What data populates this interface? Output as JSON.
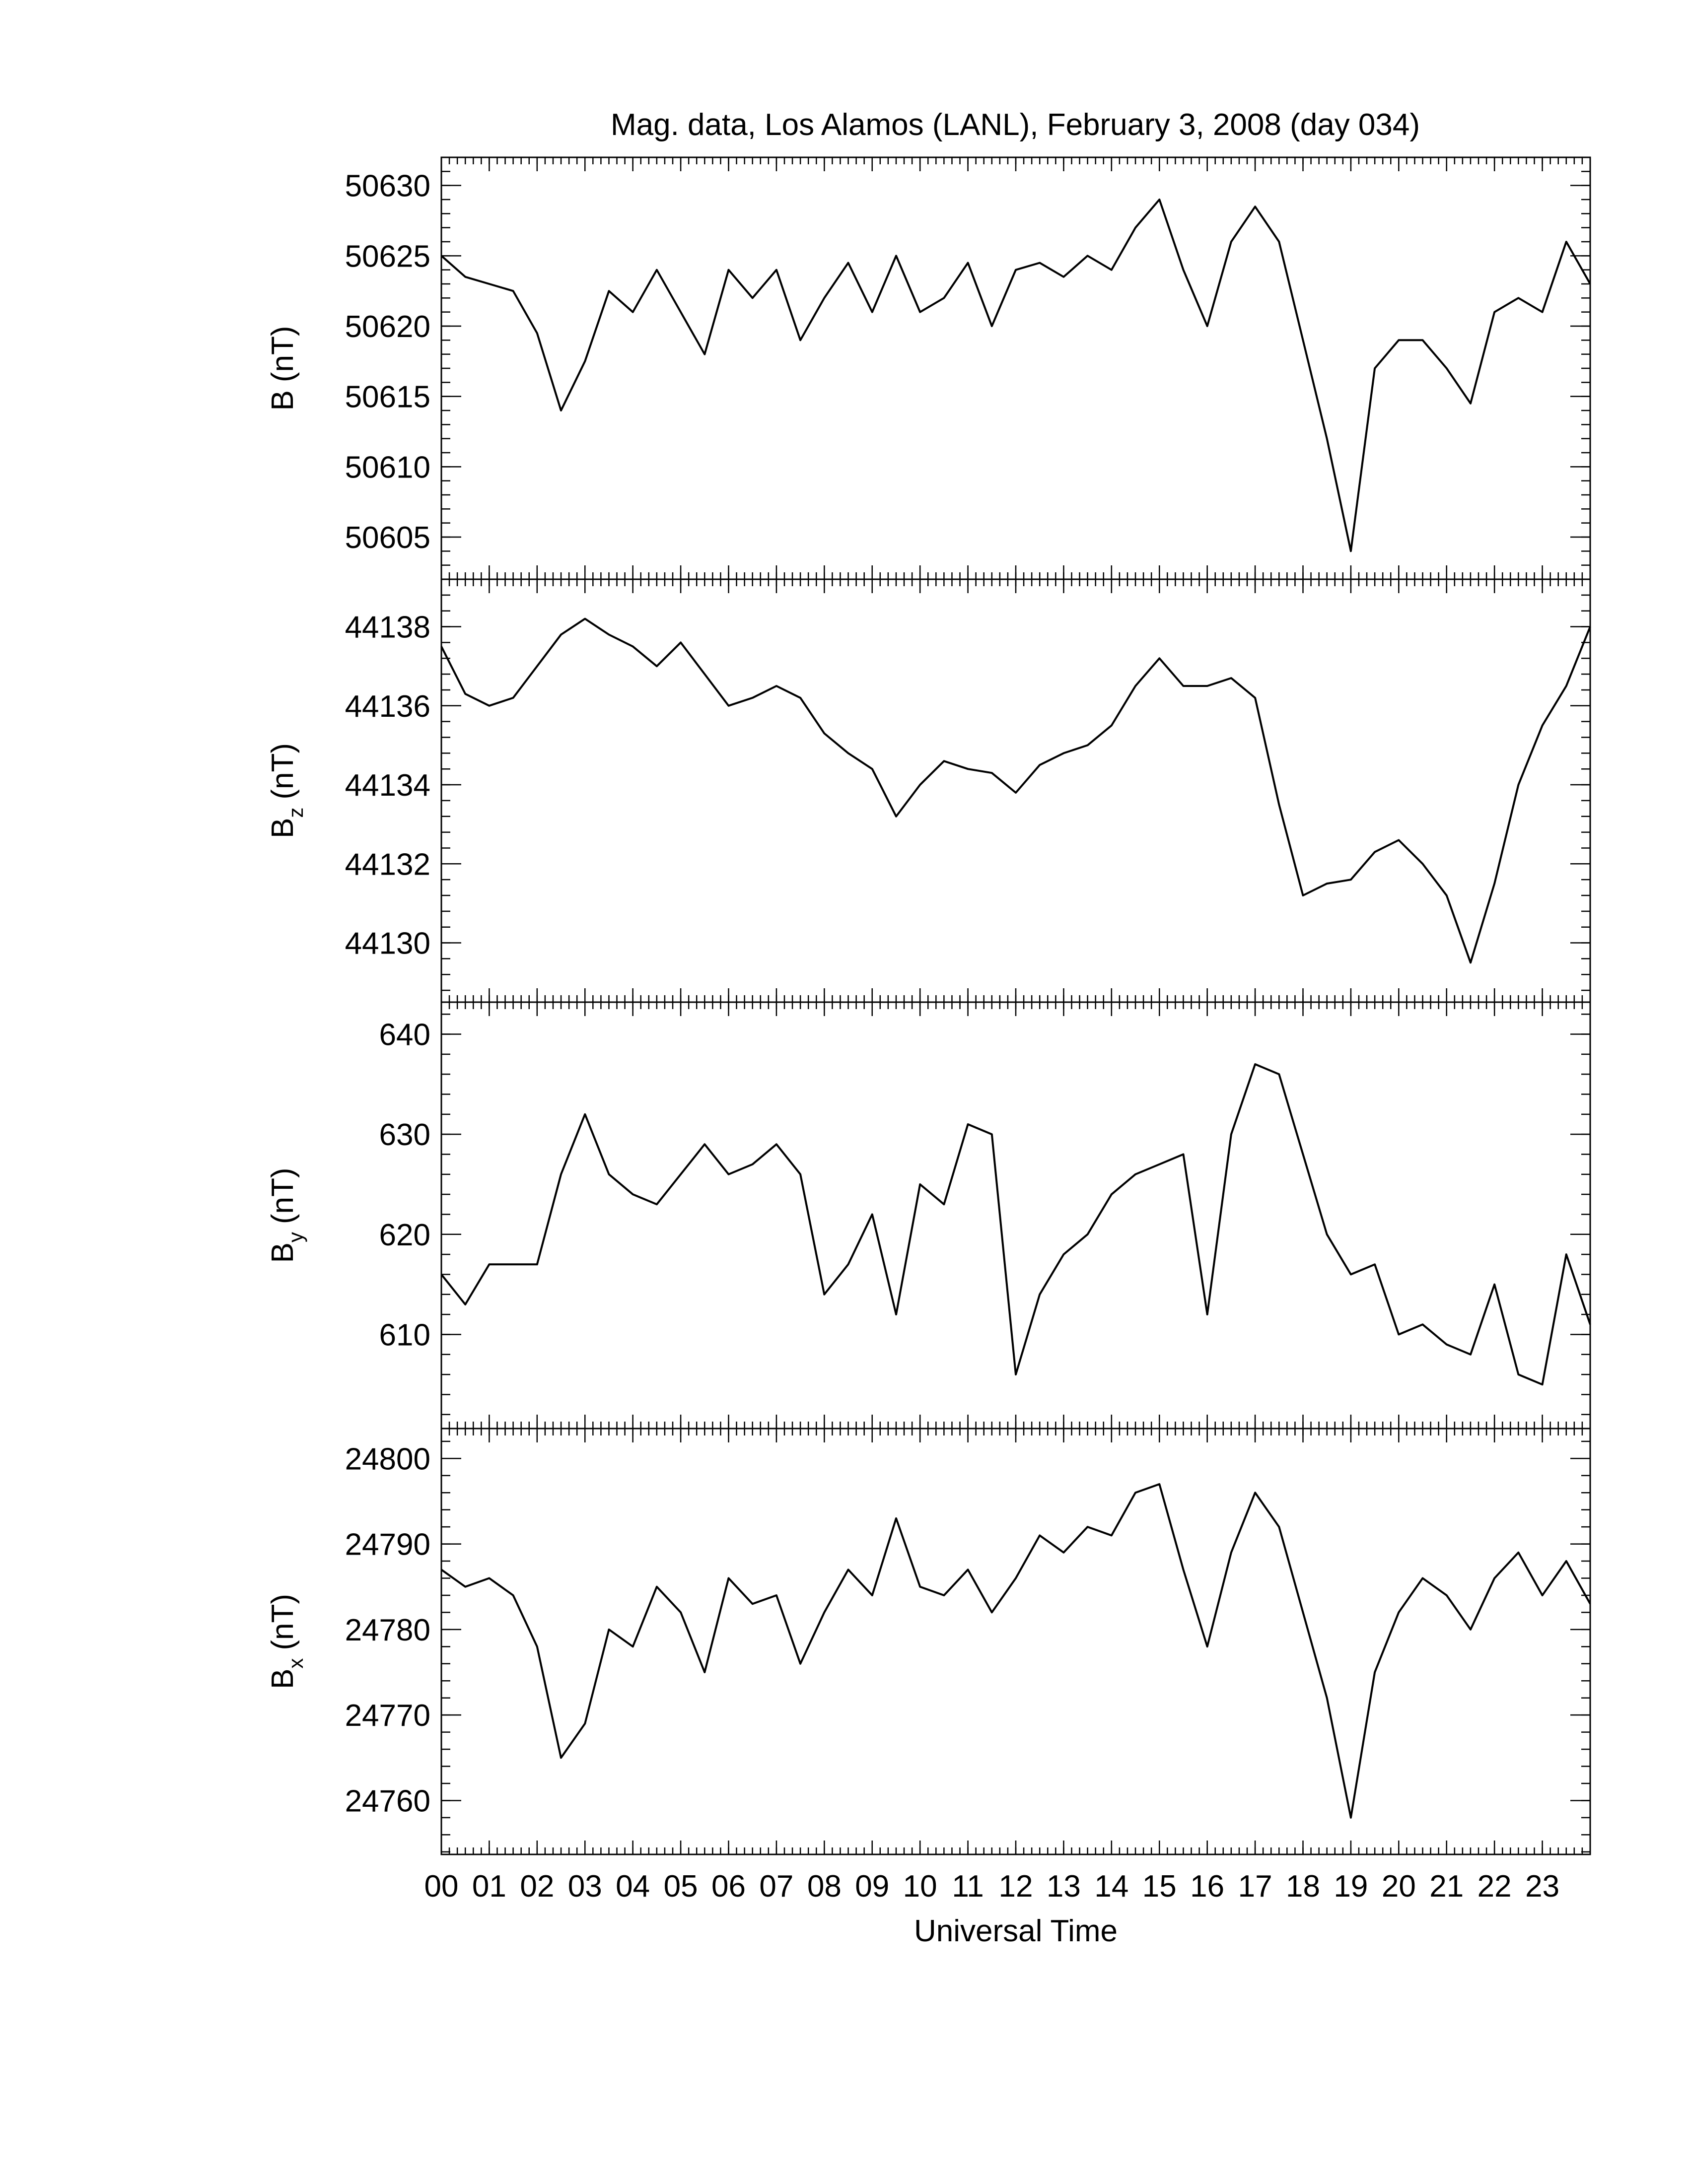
{
  "chart_data": [
    {
      "type": "line",
      "title": "Mag. data, Los Alamos (LANL), February 3, 2008 (day 034)",
      "ylabel": "B",
      "ylabel_unit": "(nT)",
      "color": "#000000",
      "xlim": [
        0,
        24
      ],
      "ylim": [
        50602,
        50632
      ],
      "yticks": [
        50605,
        50610,
        50615,
        50620,
        50625,
        50630
      ],
      "x": [
        0,
        0.5,
        1,
        1.5,
        2,
        2.5,
        3,
        3.5,
        4,
        4.5,
        5,
        5.5,
        6,
        6.5,
        7,
        7.5,
        8,
        8.5,
        9,
        9.5,
        10,
        10.5,
        11,
        11.5,
        12,
        12.5,
        13,
        13.5,
        14,
        14.5,
        15,
        15.5,
        16,
        16.5,
        17,
        17.5,
        18,
        18.5,
        19,
        19.5,
        20,
        20.5,
        21,
        21.5,
        22,
        22.5,
        23,
        23.5,
        24
      ],
      "values": [
        50625,
        50623.5,
        50623,
        50622.5,
        50619.5,
        50614,
        50617.5,
        50622.5,
        50621,
        50624,
        50621,
        50618,
        50624,
        50622,
        50624,
        50619,
        50622,
        50624.5,
        50621,
        50625,
        50621,
        50622,
        50624.5,
        50620,
        50624,
        50624.5,
        50623.5,
        50625,
        50624,
        50627,
        50629,
        50624,
        50620,
        50626,
        50628.5,
        50626,
        50619,
        50612,
        50604,
        50617,
        50619,
        50619,
        50617,
        50614.5,
        50621,
        50622,
        50621,
        50626,
        50623
      ]
    },
    {
      "type": "line",
      "ylabel": "B",
      "ylabel_subscript": "z",
      "ylabel_unit": "(nT)",
      "color": "#000000",
      "xlim": [
        0,
        24
      ],
      "ylim": [
        44128.5,
        44139.2
      ],
      "yticks": [
        44130,
        44132,
        44134,
        44136,
        44138
      ],
      "x": [
        0,
        0.5,
        1,
        1.5,
        2,
        2.5,
        3,
        3.5,
        4,
        4.5,
        5,
        5.5,
        6,
        6.5,
        7,
        7.5,
        8,
        8.5,
        9,
        9.5,
        10,
        10.5,
        11,
        11.5,
        12,
        12.5,
        13,
        13.5,
        14,
        14.5,
        15,
        15.5,
        16,
        16.5,
        17,
        17.5,
        18,
        18.5,
        19,
        19.5,
        20,
        20.5,
        21,
        21.5,
        22,
        22.5,
        23,
        23.5,
        24
      ],
      "values": [
        44137.5,
        44136.3,
        44136,
        44136.2,
        44137,
        44137.8,
        44138.2,
        44137.8,
        44137.5,
        44137,
        44137.6,
        44136.8,
        44136,
        44136.2,
        44136.5,
        44136.2,
        44135.3,
        44134.8,
        44134.4,
        44133.2,
        44134,
        44134.6,
        44134.4,
        44134.3,
        44133.8,
        44134.5,
        44134.8,
        44135,
        44135.5,
        44136.5,
        44137.2,
        44136.5,
        44136.5,
        44136.7,
        44136.2,
        44133.5,
        44131.2,
        44131.5,
        44131.6,
        44132.3,
        44132.6,
        44132,
        44131.2,
        44129.5,
        44131.5,
        44134,
        44135.5,
        44136.5,
        44138
      ]
    },
    {
      "type": "line",
      "ylabel": "B",
      "ylabel_subscript": "y",
      "ylabel_unit": "(nT)",
      "color": "#000000",
      "xlim": [
        0,
        24
      ],
      "ylim": [
        600.6,
        643.2
      ],
      "yticks": [
        610,
        620,
        630,
        640
      ],
      "x": [
        0,
        0.5,
        1,
        1.5,
        2,
        2.5,
        3,
        3.5,
        4,
        4.5,
        5,
        5.5,
        6,
        6.5,
        7,
        7.5,
        8,
        8.5,
        9,
        9.5,
        10,
        10.5,
        11,
        11.5,
        12,
        12.5,
        13,
        13.5,
        14,
        14.5,
        15,
        15.5,
        16,
        16.5,
        17,
        17.5,
        18,
        18.5,
        19,
        19.5,
        20,
        20.5,
        21,
        21.5,
        22,
        22.5,
        23,
        23.5,
        24
      ],
      "values": [
        616,
        613,
        617,
        617,
        617,
        626,
        632,
        626,
        624,
        623,
        626,
        629,
        626,
        627,
        629,
        626,
        614,
        617,
        622,
        612,
        625,
        623,
        631,
        630,
        606,
        614,
        618,
        620,
        624,
        626,
        627,
        628,
        612,
        630,
        637,
        636,
        628,
        620,
        616,
        617,
        610,
        611,
        609,
        608,
        615,
        606,
        605,
        618,
        611
      ]
    },
    {
      "type": "line",
      "ylabel": "B",
      "ylabel_subscript": "x",
      "ylabel_unit": "(nT)",
      "xlabel": "Universal Time",
      "color": "#000000",
      "xlim": [
        0,
        24
      ],
      "ylim": [
        24753.7,
        24803.5
      ],
      "yticks": [
        24760,
        24770,
        24780,
        24790,
        24800
      ],
      "xticks": [
        {
          "value": 0,
          "label": "00"
        },
        {
          "value": 1,
          "label": "01"
        },
        {
          "value": 2,
          "label": "02"
        },
        {
          "value": 3,
          "label": "03"
        },
        {
          "value": 4,
          "label": "04"
        },
        {
          "value": 5,
          "label": "05"
        },
        {
          "value": 6,
          "label": "06"
        },
        {
          "value": 7,
          "label": "07"
        },
        {
          "value": 8,
          "label": "08"
        },
        {
          "value": 9,
          "label": "09"
        },
        {
          "value": 10,
          "label": "10"
        },
        {
          "value": 11,
          "label": "11"
        },
        {
          "value": 12,
          "label": "12"
        },
        {
          "value": 13,
          "label": "13"
        },
        {
          "value": 14,
          "label": "14"
        },
        {
          "value": 15,
          "label": "15"
        },
        {
          "value": 16,
          "label": "16"
        },
        {
          "value": 17,
          "label": "17"
        },
        {
          "value": 18,
          "label": "18"
        },
        {
          "value": 19,
          "label": "19"
        },
        {
          "value": 20,
          "label": "20"
        },
        {
          "value": 21,
          "label": "21"
        },
        {
          "value": 22,
          "label": "22"
        },
        {
          "value": 23,
          "label": "23"
        }
      ],
      "x": [
        0,
        0.5,
        1,
        1.5,
        2,
        2.5,
        3,
        3.5,
        4,
        4.5,
        5,
        5.5,
        6,
        6.5,
        7,
        7.5,
        8,
        8.5,
        9,
        9.5,
        10,
        10.5,
        11,
        11.5,
        12,
        12.5,
        13,
        13.5,
        14,
        14.5,
        15,
        15.5,
        16,
        16.5,
        17,
        17.5,
        18,
        18.5,
        19,
        19.5,
        20,
        20.5,
        21,
        21.5,
        22,
        22.5,
        23,
        23.5,
        24
      ],
      "values": [
        24787,
        24785,
        24786,
        24784,
        24778,
        24765,
        24769,
        24780,
        24778,
        24785,
        24782,
        24775,
        24786,
        24783,
        24784,
        24776,
        24782,
        24787,
        24784,
        24793,
        24785,
        24784,
        24787,
        24782,
        24786,
        24791,
        24789,
        24792,
        24791,
        24796,
        24797,
        24787,
        24778,
        24789,
        24796,
        24792,
        24782,
        24772,
        24758,
        24775,
        24782,
        24786,
        24784,
        24780,
        24786,
        24789,
        24784,
        24788,
        24783
      ]
    }
  ]
}
